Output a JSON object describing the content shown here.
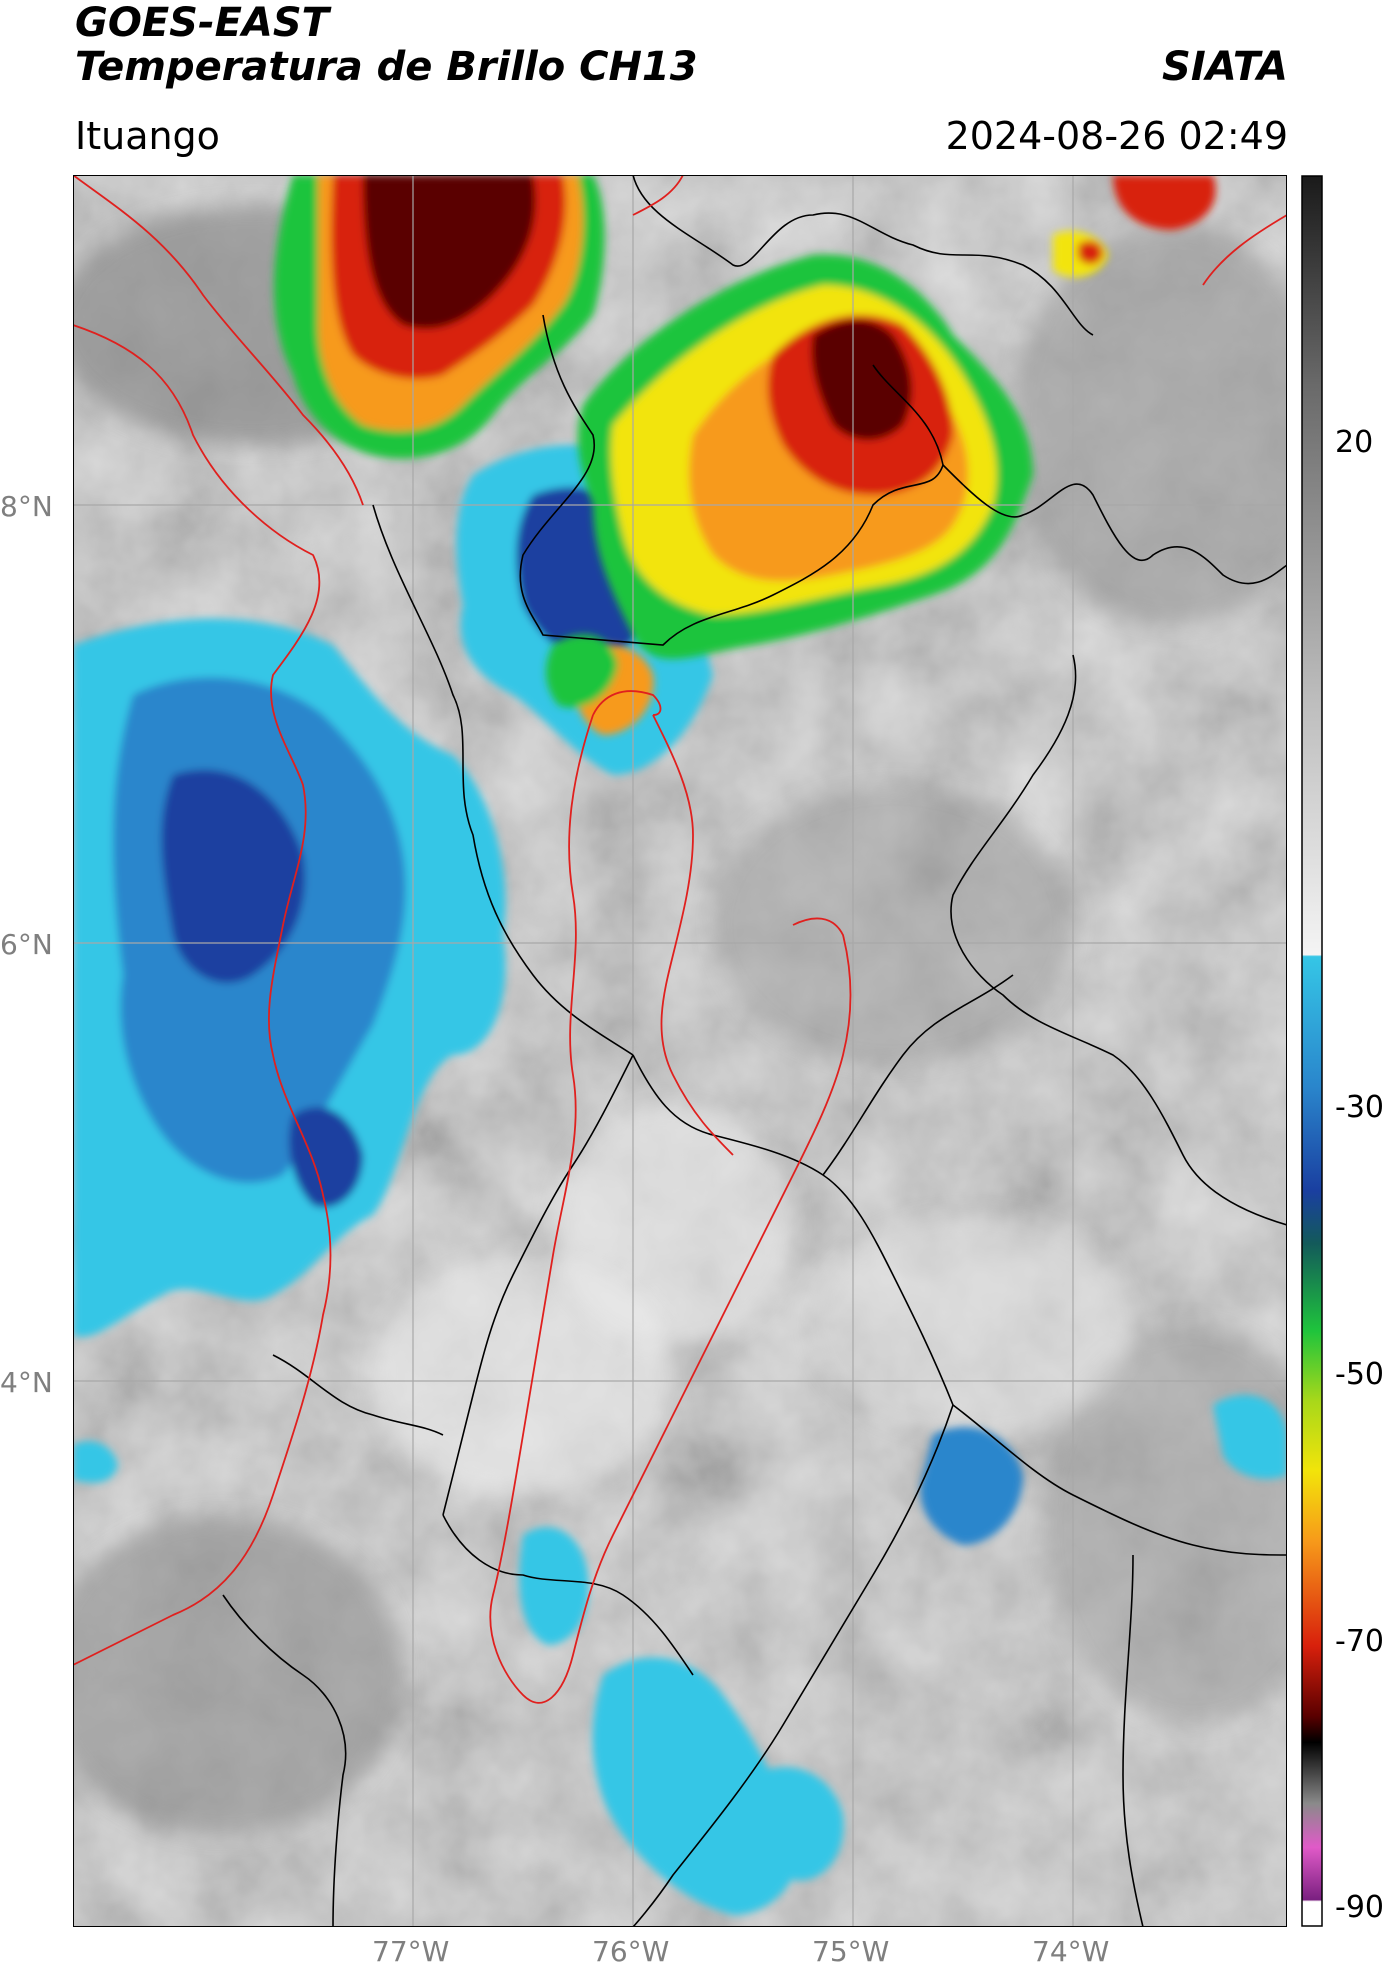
{
  "header": {
    "satellite": "GOES-EAST",
    "product": "Temperatura de Brillo CH13",
    "organization": "SIATA",
    "location": "Ituango",
    "datetime": "2024-08-26 02:49"
  },
  "map": {
    "lat_labels": [
      "8°N",
      "6°N",
      "4°N"
    ],
    "lon_labels": [
      "77°W",
      "76°W",
      "75°W",
      "74°W"
    ],
    "border_color": "#000000",
    "highlight_border_color": "#e0201e",
    "grid_color": "#a8a8a8"
  },
  "colorbar": {
    "ticks": [
      "20",
      "-30",
      "-50",
      "-70",
      "-90"
    ],
    "colors": {
      "warm_gray_top": "#2a2a2a",
      "cyan": "#35c6e6",
      "blue": "#1a3fa0",
      "dark_teal": "#135a5a",
      "green": "#1fc43c",
      "yellow": "#f2e40a",
      "orange": "#f79a1a",
      "red": "#d8200c",
      "dark_red": "#5a0000",
      "black": "#000000",
      "pink": "#e05ac8",
      "purple": "#7a2080"
    }
  }
}
